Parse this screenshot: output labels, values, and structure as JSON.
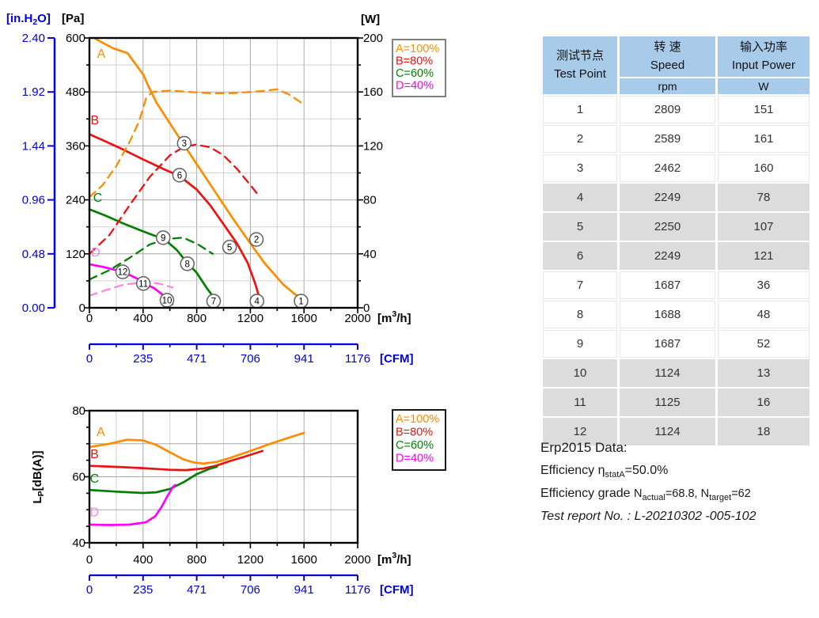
{
  "colors": {
    "A": "#ff8c00",
    "B": "#ee1111",
    "C": "#008000",
    "D": "#ff00ff",
    "D_light": "#ff85e0",
    "axis_blue": "#0000dd",
    "grid_major": "#a8a8a8",
    "grid_minor": "#d2d2d2",
    "frame": "#000000",
    "marker_stroke": "#606060",
    "legend_border_top": "#808080",
    "legend_border_bottom": "#1a1a1a",
    "table_header_bg": "#a9cbea",
    "table_row_gray": "#dcdcdc"
  },
  "chart_data": [
    {
      "type": "line",
      "x_axis": {
        "unit_parts": [
          "[m",
          "3",
          "/h]"
        ],
        "ticks": [
          0,
          400,
          800,
          1200,
          1600,
          2000
        ],
        "range": [
          0,
          2000
        ]
      },
      "y_axis_pa": {
        "unit": "[Pa]",
        "ticks": [
          600,
          480,
          360,
          240,
          120,
          0
        ],
        "range": [
          0,
          600
        ]
      },
      "y_axis_inh2o": {
        "unit_parts": [
          "[in.H",
          "2",
          "O]"
        ],
        "ticks": [
          "2.40",
          "1.92",
          "1.44",
          "0.96",
          "0.48",
          "0.00"
        ]
      },
      "y_axis_w": {
        "unit": "[W]",
        "ticks": [
          200,
          160,
          120,
          80,
          40,
          0
        ],
        "range": [
          0,
          200
        ]
      },
      "cfm_axis": {
        "unit": "[CFM]",
        "ticks": [
          0,
          235,
          471,
          706,
          941,
          1176
        ]
      },
      "legend": [
        {
          "label": "A=100%",
          "color": "A"
        },
        {
          "label": "B=80%",
          "color": "B"
        },
        {
          "label": "C=60%",
          "color": "C"
        },
        {
          "label": "D=40%",
          "color": "D"
        }
      ],
      "series": [
        {
          "name": "A-static-pressure",
          "axis": "pa",
          "dash": false,
          "color": "A",
          "points": [
            [
              35,
              600
            ],
            [
              170,
              578
            ],
            [
              285,
              566
            ],
            [
              403,
              518
            ],
            [
              435,
              496
            ],
            [
              501,
              456
            ],
            [
              570,
              424
            ],
            [
              640,
              392
            ],
            [
              710,
              360
            ],
            [
              835,
              304
            ],
            [
              953,
              251
            ],
            [
              1071,
              198
            ],
            [
              1189,
              148
            ],
            [
              1307,
              99
            ],
            [
              1444,
              52
            ],
            [
              1530,
              31
            ],
            [
              1572,
              22
            ]
          ]
        },
        {
          "name": "B-static-pressure",
          "axis": "pa",
          "dash": false,
          "color": "B",
          "points": [
            [
              0,
              386
            ],
            [
              120,
              370
            ],
            [
              250,
              352
            ],
            [
              400,
              330
            ],
            [
              550,
              309
            ],
            [
              672,
              293
            ],
            [
              800,
              263
            ],
            [
              900,
              228
            ],
            [
              1000,
              186
            ],
            [
              1100,
              143
            ],
            [
              1180,
              100
            ],
            [
              1235,
              55
            ],
            [
              1262,
              28
            ]
          ]
        },
        {
          "name": "C-static-pressure",
          "axis": "pa",
          "dash": false,
          "color": "C",
          "points": [
            [
              0,
              219
            ],
            [
              120,
              205
            ],
            [
              250,
              188
            ],
            [
              400,
              170
            ],
            [
              480,
              161
            ],
            [
              550,
              155
            ],
            [
              650,
              129
            ],
            [
              730,
              100
            ],
            [
              800,
              78
            ],
            [
              870,
              46
            ],
            [
              930,
              22
            ]
          ]
        },
        {
          "name": "D-static-pressure",
          "axis": "pa",
          "dash": false,
          "color": "D",
          "points": [
            [
              0,
              97
            ],
            [
              120,
              90
            ],
            [
              248,
              80
            ],
            [
              350,
              66
            ],
            [
              402,
              55
            ],
            [
              480,
              44
            ],
            [
              560,
              26
            ],
            [
              618,
              8
            ]
          ]
        },
        {
          "name": "A-input-power",
          "axis": "w",
          "dash": true,
          "color": "A",
          "points": [
            [
              0,
              82
            ],
            [
              100,
              91
            ],
            [
              200,
              105
            ],
            [
              300,
              123
            ],
            [
              370,
              138
            ],
            [
              425,
              156
            ],
            [
              470,
              160
            ],
            [
              600,
              161
            ],
            [
              750,
              160
            ],
            [
              900,
              159
            ],
            [
              1050,
              159
            ],
            [
              1200,
              160
            ],
            [
              1320,
              161
            ],
            [
              1400,
              162
            ],
            [
              1490,
              158
            ],
            [
              1580,
              152
            ]
          ]
        },
        {
          "name": "B-input-power",
          "axis": "w",
          "dash": true,
          "color": "B",
          "points": [
            [
              0,
              40
            ],
            [
              150,
              54
            ],
            [
              300,
              76
            ],
            [
              450,
              97
            ],
            [
              600,
              113
            ],
            [
              700,
              119
            ],
            [
              790,
              121
            ],
            [
              900,
              119
            ],
            [
              1000,
              113
            ],
            [
              1100,
              103
            ],
            [
              1200,
              91
            ],
            [
              1272,
              82
            ]
          ]
        },
        {
          "name": "C-input-power",
          "axis": "w",
          "dash": true,
          "color": "C",
          "points": [
            [
              0,
              21
            ],
            [
              150,
              28
            ],
            [
              300,
              37
            ],
            [
              450,
              47
            ],
            [
              580,
              51
            ],
            [
              700,
              52
            ],
            [
              810,
              47
            ],
            [
              920,
              40
            ]
          ]
        },
        {
          "name": "D-input-power",
          "axis": "w",
          "dash": true,
          "color": "D_light",
          "points": [
            [
              0,
              9
            ],
            [
              120,
              13
            ],
            [
              250,
              17
            ],
            [
              400,
              19
            ],
            [
              520,
              18
            ],
            [
              620,
              15
            ]
          ]
        }
      ],
      "markers": [
        {
          "n": "1",
          "x": 1578,
          "y": 15
        },
        {
          "n": "2",
          "x": 1245,
          "y": 152
        },
        {
          "n": "3",
          "x": 707,
          "y": 366
        },
        {
          "n": "4",
          "x": 1249,
          "y": 15
        },
        {
          "n": "5",
          "x": 1045,
          "y": 135
        },
        {
          "n": "6",
          "x": 672,
          "y": 295
        },
        {
          "n": "7",
          "x": 926,
          "y": 15
        },
        {
          "n": "8",
          "x": 730,
          "y": 98
        },
        {
          "n": "9",
          "x": 550,
          "y": 156
        },
        {
          "n": "10",
          "x": 578,
          "y": 17
        },
        {
          "n": "11",
          "x": 402,
          "y": 54
        },
        {
          "n": "12",
          "x": 248,
          "y": 80
        }
      ],
      "series_labels": [
        {
          "text": "A",
          "x": 88,
          "y": 556,
          "color": "A"
        },
        {
          "text": "B",
          "x": 40,
          "y": 408,
          "color": "B"
        },
        {
          "text": "C",
          "x": 62,
          "y": 236,
          "color": "C"
        },
        {
          "text": "D",
          "x": 48,
          "y": 114,
          "color": "D_light"
        }
      ]
    },
    {
      "type": "line",
      "x_axis": {
        "unit_parts": [
          "[m",
          "3",
          "/h]"
        ],
        "ticks": [
          0,
          400,
          800,
          1200,
          1600,
          2000
        ],
        "range": [
          0,
          2000
        ]
      },
      "y_axis_db": {
        "label_parts": [
          "L",
          "P",
          "[dB(A)]"
        ],
        "ticks": [
          80,
          60,
          40
        ],
        "range": [
          40,
          80
        ]
      },
      "cfm_axis": {
        "unit": "[CFM]",
        "ticks": [
          0,
          235,
          471,
          706,
          941,
          1176
        ]
      },
      "legend": [
        {
          "label": "A=100%",
          "color": "A"
        },
        {
          "label": "B=80%",
          "color": "B"
        },
        {
          "label": "C=60%",
          "color": "C"
        },
        {
          "label": "D=40%",
          "color": "D"
        }
      ],
      "series": [
        {
          "name": "A-noise",
          "dash": false,
          "color": "A",
          "points": [
            [
              0,
              69
            ],
            [
              150,
              70
            ],
            [
              280,
              71.2
            ],
            [
              400,
              71
            ],
            [
              500,
              69.6
            ],
            [
              600,
              67.4
            ],
            [
              700,
              65.3
            ],
            [
              780,
              64.3
            ],
            [
              850,
              64
            ],
            [
              950,
              64.5
            ],
            [
              1050,
              65.7
            ],
            [
              1200,
              67.8
            ],
            [
              1350,
              70
            ],
            [
              1500,
              72
            ],
            [
              1600,
              73.3
            ]
          ]
        },
        {
          "name": "B-noise",
          "dash": false,
          "color": "B",
          "points": [
            [
              0,
              63.3
            ],
            [
              200,
              63
            ],
            [
              400,
              62.6
            ],
            [
              600,
              62.1
            ],
            [
              720,
              62
            ],
            [
              850,
              62.5
            ],
            [
              950,
              63.4
            ],
            [
              1050,
              64.8
            ],
            [
              1150,
              66
            ],
            [
              1290,
              67.8
            ]
          ]
        },
        {
          "name": "C-noise",
          "dash": false,
          "color": "C",
          "points": [
            [
              0,
              56
            ],
            [
              200,
              55.5
            ],
            [
              400,
              55.1
            ],
            [
              500,
              55.3
            ],
            [
              600,
              56.3
            ],
            [
              700,
              58.3
            ],
            [
              800,
              60.8
            ],
            [
              900,
              62.5
            ],
            [
              950,
              63
            ]
          ]
        },
        {
          "name": "D-noise",
          "dash": false,
          "color": "D",
          "points": [
            [
              0,
              45.5
            ],
            [
              150,
              45.4
            ],
            [
              300,
              45.5
            ],
            [
              420,
              46.2
            ],
            [
              490,
              48
            ],
            [
              540,
              51
            ],
            [
              580,
              54
            ],
            [
              620,
              56.8
            ],
            [
              640,
              57.5
            ]
          ]
        }
      ],
      "series_labels": [
        {
          "text": "A",
          "x": 85,
          "y": 72.3,
          "color": "A"
        },
        {
          "text": "B",
          "x": 38,
          "y": 65.6,
          "color": "B"
        },
        {
          "text": "C",
          "x": 38,
          "y": 58.2,
          "color": "C"
        },
        {
          "text": "D",
          "x": 38,
          "y": 48,
          "color": "D_light"
        }
      ]
    }
  ],
  "table": {
    "col1_zh": "测试节点",
    "col1_en": "Test Point",
    "col2_zh": "转 速",
    "col2_en": "Speed",
    "col2_unit": "rpm",
    "col3_zh": "输入功率",
    "col3_en": "Input Power",
    "col3_unit": "W",
    "rows": [
      {
        "point": "1",
        "speed": "2809",
        "power": "151"
      },
      {
        "point": "2",
        "speed": "2589",
        "power": "161"
      },
      {
        "point": "3",
        "speed": "2462",
        "power": "160"
      },
      {
        "point": "4",
        "speed": "2249",
        "power": "78"
      },
      {
        "point": "5",
        "speed": "2250",
        "power": "107"
      },
      {
        "point": "6",
        "speed": "2249",
        "power": "121"
      },
      {
        "point": "7",
        "speed": "1687",
        "power": "36"
      },
      {
        "point": "8",
        "speed": "1688",
        "power": "48"
      },
      {
        "point": "9",
        "speed": "1687",
        "power": "52"
      },
      {
        "point": "10",
        "speed": "1124",
        "power": "13"
      },
      {
        "point": "11",
        "speed": "1125",
        "power": "16"
      },
      {
        "point": "12",
        "speed": "1124",
        "power": "18"
      }
    ]
  },
  "erp": {
    "title": "Erp2015  Data:",
    "efficiency_prefix": "Efficiency η",
    "efficiency_sub": "statA",
    "efficiency_value": "=50.0%",
    "grade_label": "Efficiency grade ",
    "grade_parts": {
      "n1": "N",
      "sub1": "actual",
      "mid": "=68.8, N",
      "sub2": "target",
      "end": "=62"
    },
    "report": "Test report No. : L-20210302 -005-102"
  }
}
